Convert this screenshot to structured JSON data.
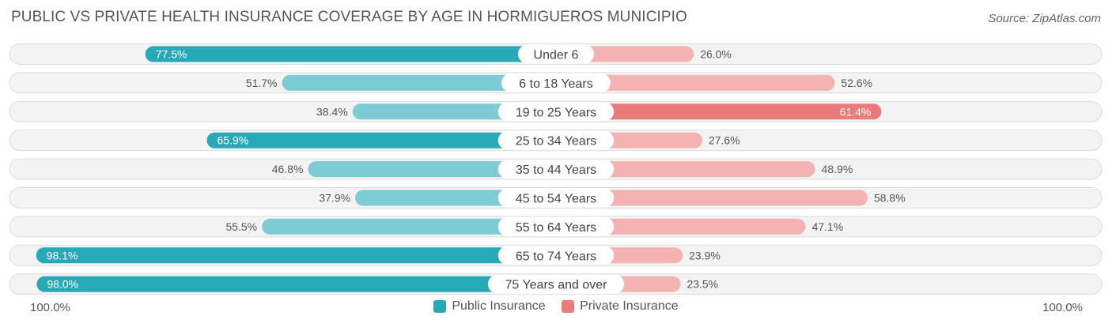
{
  "title": "PUBLIC VS PRIVATE HEALTH INSURANCE COVERAGE BY AGE IN HORMIGUEROS MUNICIPIO",
  "source": "Source: ZipAtlas.com",
  "axis": {
    "left_label": "100.0%",
    "right_label": "100.0%"
  },
  "legend": {
    "public_label": "Public Insurance",
    "private_label": "Private Insurance"
  },
  "colors": {
    "public_dark": "#27a9b8",
    "public_light": "#7ccbd5",
    "private_dark": "#e97b7b",
    "private_light": "#f2b3b2",
    "track": "#eeeeee",
    "track_border": "#dcdcdc"
  },
  "chart_data": {
    "type": "bar",
    "orientation": "horizontal-diverging",
    "title": "PUBLIC VS PRIVATE HEALTH INSURANCE COVERAGE BY AGE IN HORMIGUEROS MUNICIPIO",
    "categories": [
      "Under 6",
      "6 to 18 Years",
      "19 to 25 Years",
      "25 to 34 Years",
      "35 to 44 Years",
      "45 to 54 Years",
      "55 to 64 Years",
      "65 to 74 Years",
      "75 Years and over"
    ],
    "series": [
      {
        "name": "Public Insurance",
        "values": [
          77.5,
          51.7,
          38.4,
          65.9,
          46.8,
          37.9,
          55.5,
          98.1,
          98.0
        ],
        "labels": [
          "77.5%",
          "51.7%",
          "38.4%",
          "65.9%",
          "46.8%",
          "37.9%",
          "55.5%",
          "98.1%",
          "98.0%"
        ]
      },
      {
        "name": "Private Insurance",
        "values": [
          26.0,
          52.6,
          61.4,
          27.6,
          48.9,
          58.8,
          47.1,
          23.9,
          23.5
        ],
        "labels": [
          "26.0%",
          "52.6%",
          "61.4%",
          "27.6%",
          "48.9%",
          "58.8%",
          "47.1%",
          "23.9%",
          "23.5%"
        ]
      }
    ],
    "xlim": [
      0,
      100
    ],
    "legend_position": "bottom-center"
  }
}
